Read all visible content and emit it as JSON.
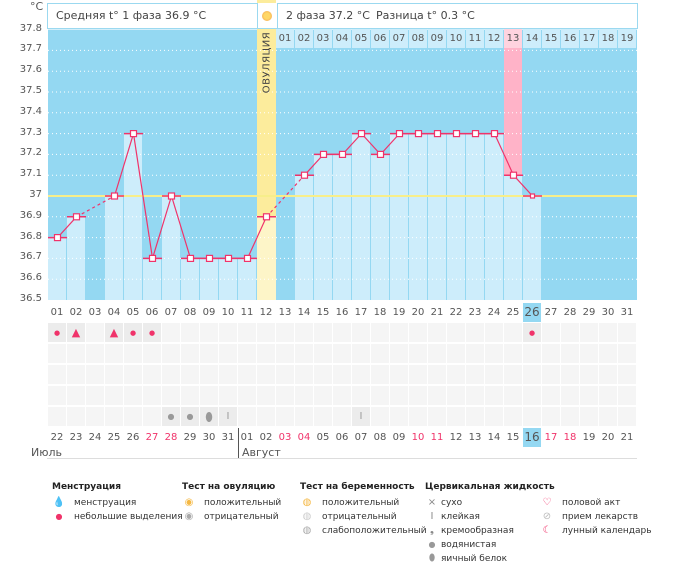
{
  "axis": {
    "unit": "°C",
    "ticks": [
      "37.8",
      "37.7",
      "37.6",
      "37.5",
      "37.4",
      "37.3",
      "37.2",
      "37.1",
      "37",
      "36.9",
      "36.8",
      "36.7",
      "36.6",
      "36.5"
    ]
  },
  "header": {
    "phase1": "Средняя t° 1 фаза 36.9 °C",
    "phase2": "2 фаза 37.2 °C",
    "diff": "Разница t° 0.3 °C",
    "ovulation_label": "ОВУЛЯЦИЯ",
    "next_cycle_days": [
      "01",
      "02",
      "03",
      "04",
      "05",
      "06",
      "07",
      "08",
      "09",
      "10",
      "11",
      "12",
      "13",
      "14",
      "15",
      "16",
      "17",
      "18",
      "19"
    ]
  },
  "colors": {
    "chart_bg": "#94d8f2",
    "bar": "#cdedfb",
    "line": "#f0336a",
    "ovulation": "#fcec9c",
    "delay": "#ffb3c8",
    "coverline": "#f7ee8a"
  },
  "chart_data": {
    "type": "line",
    "title": "",
    "ylabel": "°C",
    "ylim": [
      36.5,
      37.8
    ],
    "cycle_days": [
      "01",
      "02",
      "03",
      "04",
      "05",
      "06",
      "07",
      "08",
      "09",
      "10",
      "11",
      "12",
      "13",
      "14",
      "15",
      "16",
      "17",
      "18",
      "19",
      "20",
      "21",
      "22",
      "23",
      "24",
      "25",
      "26",
      "27",
      "28",
      "29",
      "30",
      "31"
    ],
    "temperatures": [
      36.8,
      36.9,
      null,
      37.0,
      37.3,
      36.7,
      37.0,
      36.7,
      36.7,
      36.7,
      36.7,
      36.9,
      null,
      37.1,
      37.2,
      37.2,
      37.3,
      37.2,
      37.3,
      37.3,
      37.3,
      37.3,
      37.3,
      37.3,
      37.1,
      37.0,
      null,
      null,
      null,
      null,
      null
    ],
    "coverline": 37.0,
    "ovulation_day": 12,
    "delay_day": 25,
    "today_day": 26,
    "grid": true
  },
  "calendar": {
    "dates": [
      "22",
      "23",
      "24",
      "25",
      "26",
      "27",
      "28",
      "29",
      "30",
      "31",
      "01",
      "02",
      "03",
      "04",
      "05",
      "06",
      "07",
      "08",
      "09",
      "10",
      "11",
      "12",
      "13",
      "14",
      "15",
      "16",
      "17",
      "18",
      "19",
      "20",
      "21"
    ],
    "weekend_idx": [
      5,
      6,
      12,
      13,
      19,
      20,
      26,
      27
    ],
    "months": [
      "Июль",
      "Август"
    ],
    "menstruation": {
      "1": "small",
      "2": "heavy",
      "4": "heavy",
      "5": "small",
      "6": "small",
      "26": "small"
    },
    "cervical": {
      "7": "watery",
      "8": "watery",
      "9": "eggwhite",
      "10": "sticky",
      "17": "sticky"
    }
  },
  "legend": {
    "menstruation": {
      "title": "Менструация",
      "items": [
        "менструация",
        "небольшие выделения"
      ]
    },
    "ovulation_test": {
      "title": "Тест на овуляцию",
      "items": [
        "положительный",
        "отрицательный"
      ]
    },
    "pregnancy_test": {
      "title": "Тест на беременность",
      "items": [
        "положительный",
        "отрицательный",
        "слабоположительный"
      ]
    },
    "cervical": {
      "title": "Цервикальная жидкость",
      "items": [
        "сухо",
        "клейкая",
        "кремообразная",
        "водянистая",
        "яичный белок"
      ]
    },
    "other": {
      "items": [
        "половой акт",
        "прием лекарств",
        "лунный календарь"
      ]
    }
  }
}
